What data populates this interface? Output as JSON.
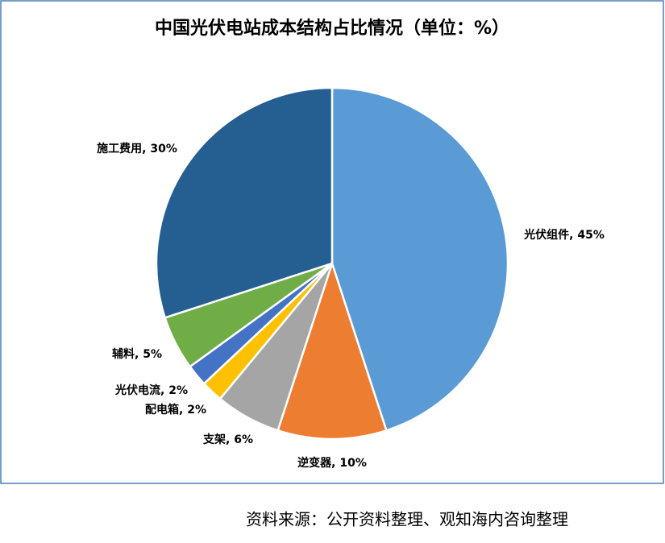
{
  "chart_data": {
    "type": "pie",
    "title": "中国光伏电站成本结构占比情况（单位：%）",
    "values": [
      45,
      10,
      6,
      2,
      2,
      5,
      30
    ],
    "value_labels": [
      "光伏组件, 45%",
      "逆变器, 10%",
      "支架, 6%",
      "配电箱, 2%",
      "光伏电流, 2%",
      "辅料, 5%",
      "施工费用, 30%"
    ],
    "colors": [
      "#5b9bd5",
      "#ed7d31",
      "#a5a5a5",
      "#ffc000",
      "#4472c4",
      "#70ad47",
      "#255e91"
    ],
    "source": "资料来源：公开资料整理、观知海内咨询整理"
  }
}
